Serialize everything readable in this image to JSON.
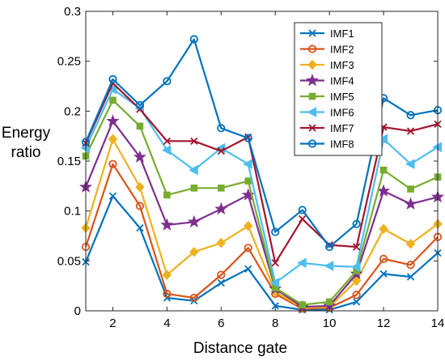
{
  "chart_data": {
    "type": "line",
    "xlabel": "Distance gate",
    "ylabel": [
      "Energy",
      "ratio"
    ],
    "xlim": [
      1,
      14
    ],
    "ylim": [
      0,
      0.3
    ],
    "x": [
      1,
      2,
      3,
      4,
      5,
      6,
      7,
      8,
      9,
      10,
      11,
      12,
      13,
      14
    ],
    "xticks": [
      "2",
      "4",
      "6",
      "8",
      "10",
      "12",
      "14"
    ],
    "yticks": [
      "0",
      "0.05",
      "0.1",
      "0.15",
      "0.2",
      "0.25",
      "0.3"
    ],
    "legend_position": "top-right",
    "grid": false,
    "series": [
      {
        "name": "IMF1",
        "color": "#0072BD",
        "marker": "x",
        "values": [
          0.049,
          0.115,
          0.083,
          0.013,
          0.01,
          0.028,
          0.042,
          0.005,
          0.001,
          0.001,
          0.009,
          0.037,
          0.034,
          0.058
        ]
      },
      {
        "name": "IMF2",
        "color": "#D95319",
        "marker": "o",
        "values": [
          0.064,
          0.147,
          0.105,
          0.017,
          0.013,
          0.036,
          0.063,
          0.017,
          0.002,
          0.003,
          0.016,
          0.052,
          0.046,
          0.074
        ]
      },
      {
        "name": "IMF3",
        "color": "#EDB120",
        "marker": "d",
        "values": [
          0.083,
          0.172,
          0.124,
          0.036,
          0.059,
          0.068,
          0.085,
          0.019,
          0.003,
          0.004,
          0.03,
          0.082,
          0.067,
          0.087
        ]
      },
      {
        "name": "IMF4",
        "color": "#7E2F8E",
        "marker": "p",
        "values": [
          0.124,
          0.19,
          0.154,
          0.086,
          0.089,
          0.102,
          0.116,
          0.022,
          0.004,
          0.005,
          0.037,
          0.12,
          0.107,
          0.114
        ]
      },
      {
        "name": "IMF5",
        "color": "#77AC30",
        "marker": "s",
        "values": [
          0.155,
          0.211,
          0.185,
          0.116,
          0.123,
          0.123,
          0.13,
          0.023,
          0.006,
          0.009,
          0.04,
          0.141,
          0.122,
          0.134
        ]
      },
      {
        "name": "IMF6",
        "color": "#4DBEEE",
        "marker": "<",
        "values": [
          0.163,
          0.222,
          0.203,
          0.161,
          0.141,
          0.163,
          0.147,
          0.028,
          0.048,
          0.045,
          0.044,
          0.172,
          0.147,
          0.164
        ]
      },
      {
        "name": "IMF7",
        "color": "#A2142F",
        "marker": "x",
        "values": [
          0.168,
          0.228,
          0.202,
          0.17,
          0.17,
          0.16,
          0.174,
          0.048,
          0.092,
          0.066,
          0.064,
          0.184,
          0.18,
          0.187
        ]
      },
      {
        "name": "IMF8",
        "color": "#0072BD",
        "marker": "o",
        "values": [
          0.169,
          0.232,
          0.206,
          0.23,
          0.272,
          0.183,
          0.173,
          0.079,
          0.101,
          0.064,
          0.087,
          0.213,
          0.196,
          0.201
        ]
      }
    ]
  }
}
